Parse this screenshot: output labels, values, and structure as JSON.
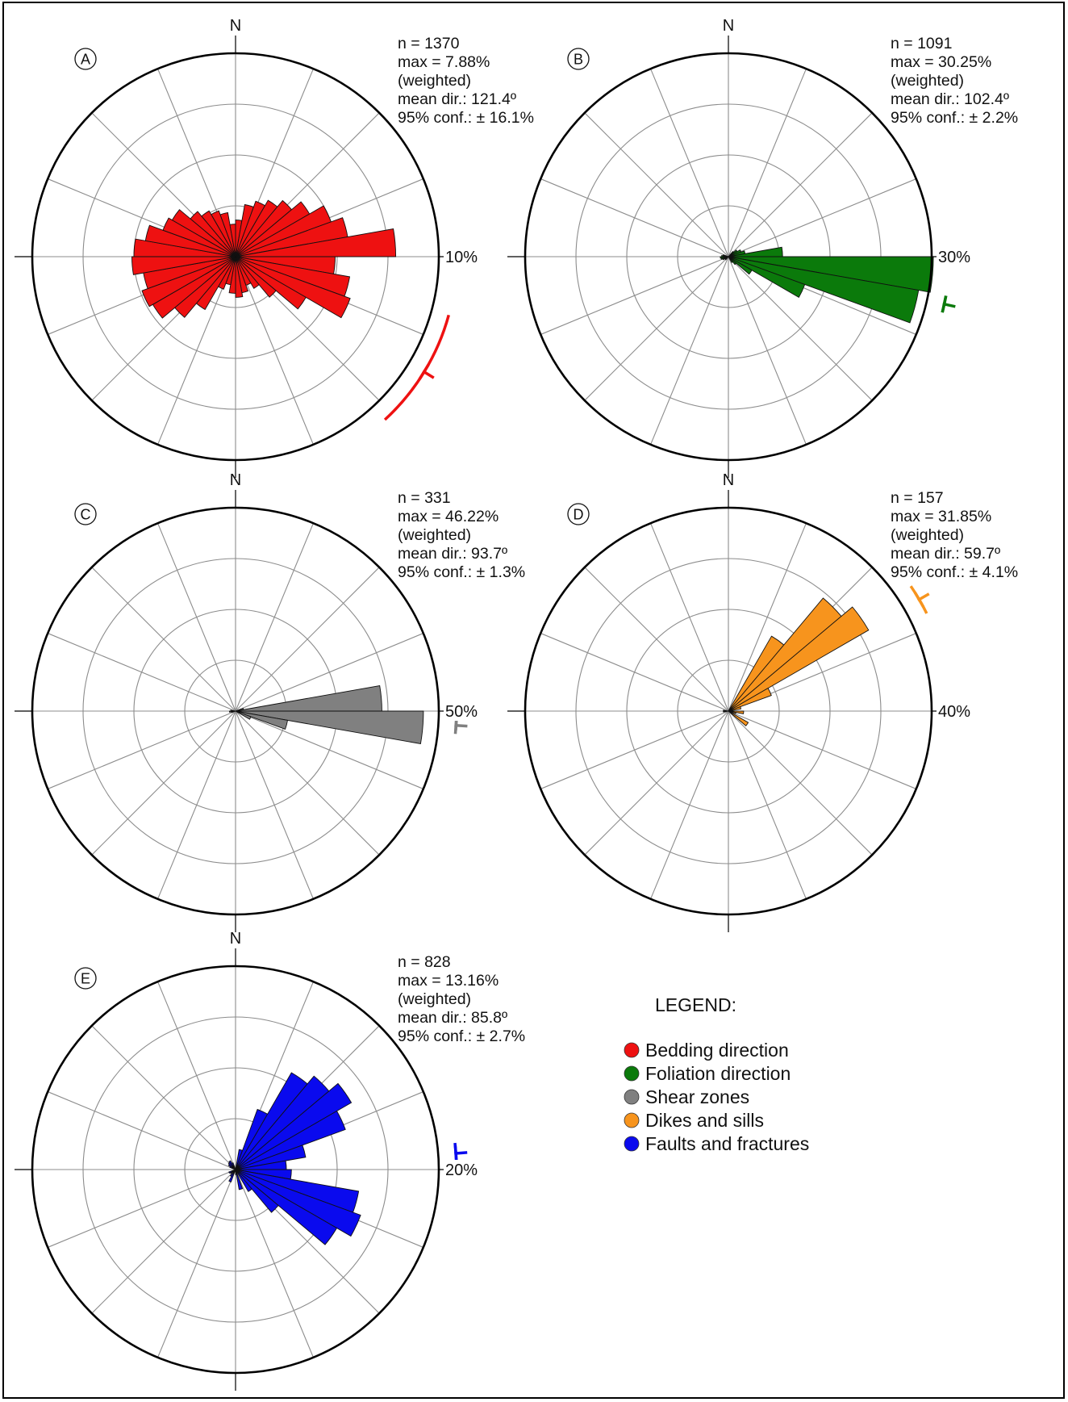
{
  "legend": {
    "title": "LEGEND:",
    "items": [
      {
        "label": "Bedding direction",
        "color": "#ee1111"
      },
      {
        "label": "Foliation direction",
        "color": "#0b7a0b"
      },
      {
        "label": "Shear zones",
        "color": "#808080"
      },
      {
        "label": "Dikes and sills",
        "color": "#f7941d"
      },
      {
        "label": "Faults and fractures",
        "color": "#0a0aee"
      }
    ]
  },
  "chart_data": [
    {
      "type": "rose",
      "panel": "A",
      "north_label": "N",
      "scale_label": "10%",
      "scale_max": 10,
      "color": "#ee1111",
      "stats": [
        "n = 1370",
        "max = 7.88%",
        "(weighted)",
        "mean dir.: 121.4º",
        "95% conf.: ± 16.1%"
      ],
      "mean_dir": 121.4,
      "conf_arc": [
        105.3,
        137.5
      ],
      "bin_width": 10,
      "bins": [
        {
          "dir": 5,
          "value": 1.8
        },
        {
          "dir": 15,
          "value": 2.6
        },
        {
          "dir": 25,
          "value": 2.9
        },
        {
          "dir": 35,
          "value": 3.2
        },
        {
          "dir": 45,
          "value": 3.6
        },
        {
          "dir": 55,
          "value": 4.2
        },
        {
          "dir": 65,
          "value": 5.0
        },
        {
          "dir": 75,
          "value": 5.6
        },
        {
          "dir": 85,
          "value": 7.88
        },
        {
          "dir": 95,
          "value": 4.9
        },
        {
          "dir": 105,
          "value": 5.7
        },
        {
          "dir": 115,
          "value": 6.0
        },
        {
          "dir": 125,
          "value": 4.0
        },
        {
          "dir": 135,
          "value": 2.6
        },
        {
          "dir": 145,
          "value": 1.8
        },
        {
          "dir": 155,
          "value": 1.5
        },
        {
          "dir": 165,
          "value": 1.8
        },
        {
          "dir": 175,
          "value": 2.0
        },
        {
          "dir": 185,
          "value": 1.8
        },
        {
          "dir": 195,
          "value": 1.4
        },
        {
          "dir": 205,
          "value": 1.7
        },
        {
          "dir": 215,
          "value": 3.0
        },
        {
          "dir": 225,
          "value": 3.9
        },
        {
          "dir": 235,
          "value": 4.7
        },
        {
          "dir": 245,
          "value": 4.9
        },
        {
          "dir": 255,
          "value": 4.6
        },
        {
          "dir": 265,
          "value": 5.1
        },
        {
          "dir": 275,
          "value": 5.0
        },
        {
          "dir": 285,
          "value": 4.5
        },
        {
          "dir": 295,
          "value": 3.8
        },
        {
          "dir": 305,
          "value": 3.6
        },
        {
          "dir": 315,
          "value": 2.9
        },
        {
          "dir": 325,
          "value": 2.6
        },
        {
          "dir": 335,
          "value": 2.4
        },
        {
          "dir": 345,
          "value": 2.2
        },
        {
          "dir": 355,
          "value": 1.6
        }
      ]
    },
    {
      "type": "rose",
      "panel": "B",
      "north_label": "N",
      "scale_label": "30%",
      "scale_max": 30,
      "color": "#0b7a0b",
      "stats": [
        "n = 1091",
        "max = 30.25%",
        "(weighted)",
        "mean dir.: 102.4º",
        "95% conf.: ± 2.2%"
      ],
      "mean_dir": 102.4,
      "conf_arc": [
        100.2,
        104.6
      ],
      "bin_width": 10,
      "bins": [
        {
          "dir": 45,
          "value": 1.0
        },
        {
          "dir": 55,
          "value": 1.5
        },
        {
          "dir": 65,
          "value": 2.0
        },
        {
          "dir": 75,
          "value": 2.5
        },
        {
          "dir": 85,
          "value": 8.0
        },
        {
          "dir": 95,
          "value": 30.25
        },
        {
          "dir": 105,
          "value": 28.5
        },
        {
          "dir": 115,
          "value": 12.0
        },
        {
          "dir": 125,
          "value": 4.0
        },
        {
          "dir": 135,
          "value": 1.5
        },
        {
          "dir": 145,
          "value": 1.0
        },
        {
          "dir": 225,
          "value": 0.6
        },
        {
          "dir": 245,
          "value": 0.9
        },
        {
          "dir": 255,
          "value": 1.1
        },
        {
          "dir": 265,
          "value": 1.2
        },
        {
          "dir": 275,
          "value": 1.0
        },
        {
          "dir": 285,
          "value": 0.8
        }
      ]
    },
    {
      "type": "rose",
      "panel": "C",
      "north_label": "N",
      "scale_label": "50%",
      "scale_max": 50,
      "color": "#808080",
      "stats": [
        "n = 331",
        "max = 46.22%",
        "(weighted)",
        "mean dir.: 93.7º",
        "95% conf.: ± 1.3%"
      ],
      "mean_dir": 93.7,
      "conf_arc": [
        92.4,
        95.0
      ],
      "bin_width": 10,
      "bins": [
        {
          "dir": 75,
          "value": 2.0
        },
        {
          "dir": 85,
          "value": 36.0
        },
        {
          "dir": 95,
          "value": 46.22
        },
        {
          "dir": 105,
          "value": 13.0
        },
        {
          "dir": 115,
          "value": 4.0
        },
        {
          "dir": 255,
          "value": 1.0
        },
        {
          "dir": 265,
          "value": 1.5
        },
        {
          "dir": 275,
          "value": 1.2
        }
      ]
    },
    {
      "type": "rose",
      "panel": "D",
      "north_label": "N",
      "scale_label": "40%",
      "scale_max": 40,
      "color": "#f7941d",
      "stats": [
        "n = 157",
        "max = 31.85%",
        "(weighted)",
        "mean dir.: 59.7º",
        "95% conf.: ± 4.1%"
      ],
      "mean_dir": 59.7,
      "conf_arc": [
        55.6,
        63.8
      ],
      "bin_width": 10,
      "bins": [
        {
          "dir": 35,
          "value": 17.0
        },
        {
          "dir": 45,
          "value": 29.0
        },
        {
          "dir": 55,
          "value": 31.85
        },
        {
          "dir": 65,
          "value": 9.0
        },
        {
          "dir": 75,
          "value": 2.5
        },
        {
          "dir": 95,
          "value": 3.0
        },
        {
          "dir": 105,
          "value": 1.5
        },
        {
          "dir": 125,
          "value": 4.5
        },
        {
          "dir": 265,
          "value": 1.0
        },
        {
          "dir": 275,
          "value": 1.0
        }
      ]
    },
    {
      "type": "rose",
      "panel": "E",
      "north_label": "N",
      "scale_label": "20%",
      "scale_max": 20,
      "color": "#0a0aee",
      "stats": [
        "n = 828",
        "max = 13.16%",
        "(weighted)",
        "mean dir.: 85.8º",
        "95% conf.: ± 2.7%"
      ],
      "mean_dir": 85.8,
      "conf_arc": [
        83.1,
        88.5
      ],
      "bin_width": 10,
      "bins": [
        {
          "dir": 15,
          "value": 2.0
        },
        {
          "dir": 25,
          "value": 6.3
        },
        {
          "dir": 35,
          "value": 11.0
        },
        {
          "dir": 45,
          "value": 12.0
        },
        {
          "dir": 55,
          "value": 13.16
        },
        {
          "dir": 65,
          "value": 11.5
        },
        {
          "dir": 75,
          "value": 7.0
        },
        {
          "dir": 85,
          "value": 5.0
        },
        {
          "dir": 95,
          "value": 5.5
        },
        {
          "dir": 105,
          "value": 12.3
        },
        {
          "dir": 115,
          "value": 13.1
        },
        {
          "dir": 125,
          "value": 11.5
        },
        {
          "dir": 135,
          "value": 5.5
        },
        {
          "dir": 145,
          "value": 2.5
        },
        {
          "dir": 165,
          "value": 2.0
        },
        {
          "dir": 175,
          "value": 0.5
        },
        {
          "dir": 205,
          "value": 1.3
        },
        {
          "dir": 215,
          "value": 0.8
        },
        {
          "dir": 235,
          "value": 0.6
        },
        {
          "dir": 245,
          "value": 0.7
        },
        {
          "dir": 295,
          "value": 0.6
        },
        {
          "dir": 305,
          "value": 0.8
        },
        {
          "dir": 315,
          "value": 0.9
        },
        {
          "dir": 325,
          "value": 1.0
        },
        {
          "dir": 335,
          "value": 0.7
        }
      ]
    }
  ]
}
